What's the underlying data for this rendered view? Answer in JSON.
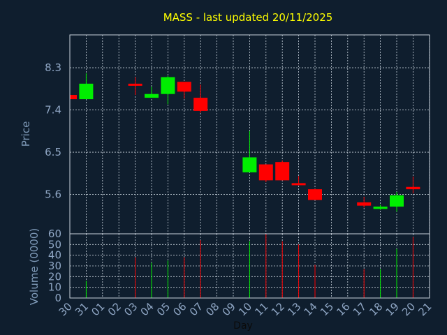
{
  "chart_data": {
    "type": "candlestick",
    "title": "MASS - last updated 20/11/2025",
    "xlabel": "Day",
    "days": [
      "30",
      "31",
      "01",
      "02",
      "03",
      "04",
      "05",
      "06",
      "07",
      "08",
      "09",
      "10",
      "11",
      "12",
      "13",
      "14",
      "15",
      "16",
      "17",
      "18",
      "19",
      "20",
      "21"
    ],
    "price_panel": {
      "ylabel": "Price",
      "yticks": [
        "8.3",
        "7.4",
        "6.5",
        "5.6"
      ],
      "ylim": [
        4.76,
        9.0
      ],
      "candles": [
        {
          "day": "30",
          "open": 7.72,
          "close": 7.63,
          "high": 7.72,
          "low": 7.63,
          "color": "red"
        },
        {
          "day": "31",
          "open": 7.63,
          "close": 7.96,
          "high": 8.18,
          "low": 7.63,
          "color": "green"
        },
        {
          "day": "03",
          "open": 7.96,
          "close": 7.92,
          "high": 8.1,
          "low": 7.72,
          "color": "red"
        },
        {
          "day": "04",
          "open": 7.66,
          "close": 7.74,
          "high": 7.9,
          "low": 7.66,
          "color": "green"
        },
        {
          "day": "05",
          "open": 7.74,
          "close": 8.1,
          "high": 8.13,
          "low": 7.52,
          "color": "green"
        },
        {
          "day": "06",
          "open": 8.0,
          "close": 7.79,
          "high": 8.0,
          "low": 7.64,
          "color": "red"
        },
        {
          "day": "07",
          "open": 7.66,
          "close": 7.38,
          "high": 7.94,
          "low": 7.34,
          "color": "red"
        },
        {
          "day": "10",
          "open": 6.07,
          "close": 6.39,
          "high": 6.95,
          "low": 6.07,
          "color": "green"
        },
        {
          "day": "11",
          "open": 6.24,
          "close": 5.9,
          "high": 6.24,
          "low": 5.86,
          "color": "red"
        },
        {
          "day": "12",
          "open": 6.29,
          "close": 5.9,
          "high": 6.32,
          "low": 5.9,
          "color": "red"
        },
        {
          "day": "13",
          "open": 5.84,
          "close": 5.8,
          "high": 5.99,
          "low": 5.8,
          "color": "red"
        },
        {
          "day": "14",
          "open": 5.71,
          "close": 5.48,
          "high": 5.72,
          "low": 5.48,
          "color": "red"
        },
        {
          "day": "17",
          "open": 5.43,
          "close": 5.36,
          "high": 5.55,
          "low": 5.32,
          "color": "red"
        },
        {
          "day": "18",
          "open": 5.29,
          "close": 5.34,
          "high": 5.38,
          "low": 5.27,
          "color": "green"
        },
        {
          "day": "19",
          "open": 5.34,
          "close": 5.58,
          "high": 5.65,
          "low": 5.23,
          "color": "green"
        },
        {
          "day": "20",
          "open": 5.76,
          "close": 5.71,
          "high": 5.98,
          "low": 5.62,
          "color": "red"
        }
      ]
    },
    "volume_panel": {
      "ylabel": "Volume (0000)",
      "yticks": [
        "0",
        "10",
        "20",
        "30",
        "40",
        "50",
        "60"
      ],
      "ylim": [
        0,
        60
      ],
      "bars": [
        {
          "day": "31",
          "value": 16,
          "color": "green"
        },
        {
          "day": "03",
          "value": 38,
          "color": "red"
        },
        {
          "day": "04",
          "value": 33,
          "color": "green"
        },
        {
          "day": "05",
          "value": 35,
          "color": "green"
        },
        {
          "day": "06",
          "value": 38,
          "color": "red"
        },
        {
          "day": "07",
          "value": 54,
          "color": "red"
        },
        {
          "day": "10",
          "value": 53,
          "color": "green"
        },
        {
          "day": "11",
          "value": 60,
          "color": "red"
        },
        {
          "day": "12",
          "value": 53,
          "color": "red"
        },
        {
          "day": "13",
          "value": 50,
          "color": "red"
        },
        {
          "day": "14",
          "value": 31,
          "color": "red"
        },
        {
          "day": "17",
          "value": 27,
          "color": "red"
        },
        {
          "day": "18",
          "value": 27,
          "color": "green"
        },
        {
          "day": "19",
          "value": 46,
          "color": "green"
        },
        {
          "day": "20",
          "value": 57,
          "color": "red"
        }
      ]
    },
    "grid": true,
    "colors": {
      "background": "#0f1e2e",
      "grid": "#c8d2dc",
      "title": "#ffff00",
      "axis_text": "#8fa6c4",
      "up": "#00ee00",
      "down": "#ff0000"
    }
  }
}
